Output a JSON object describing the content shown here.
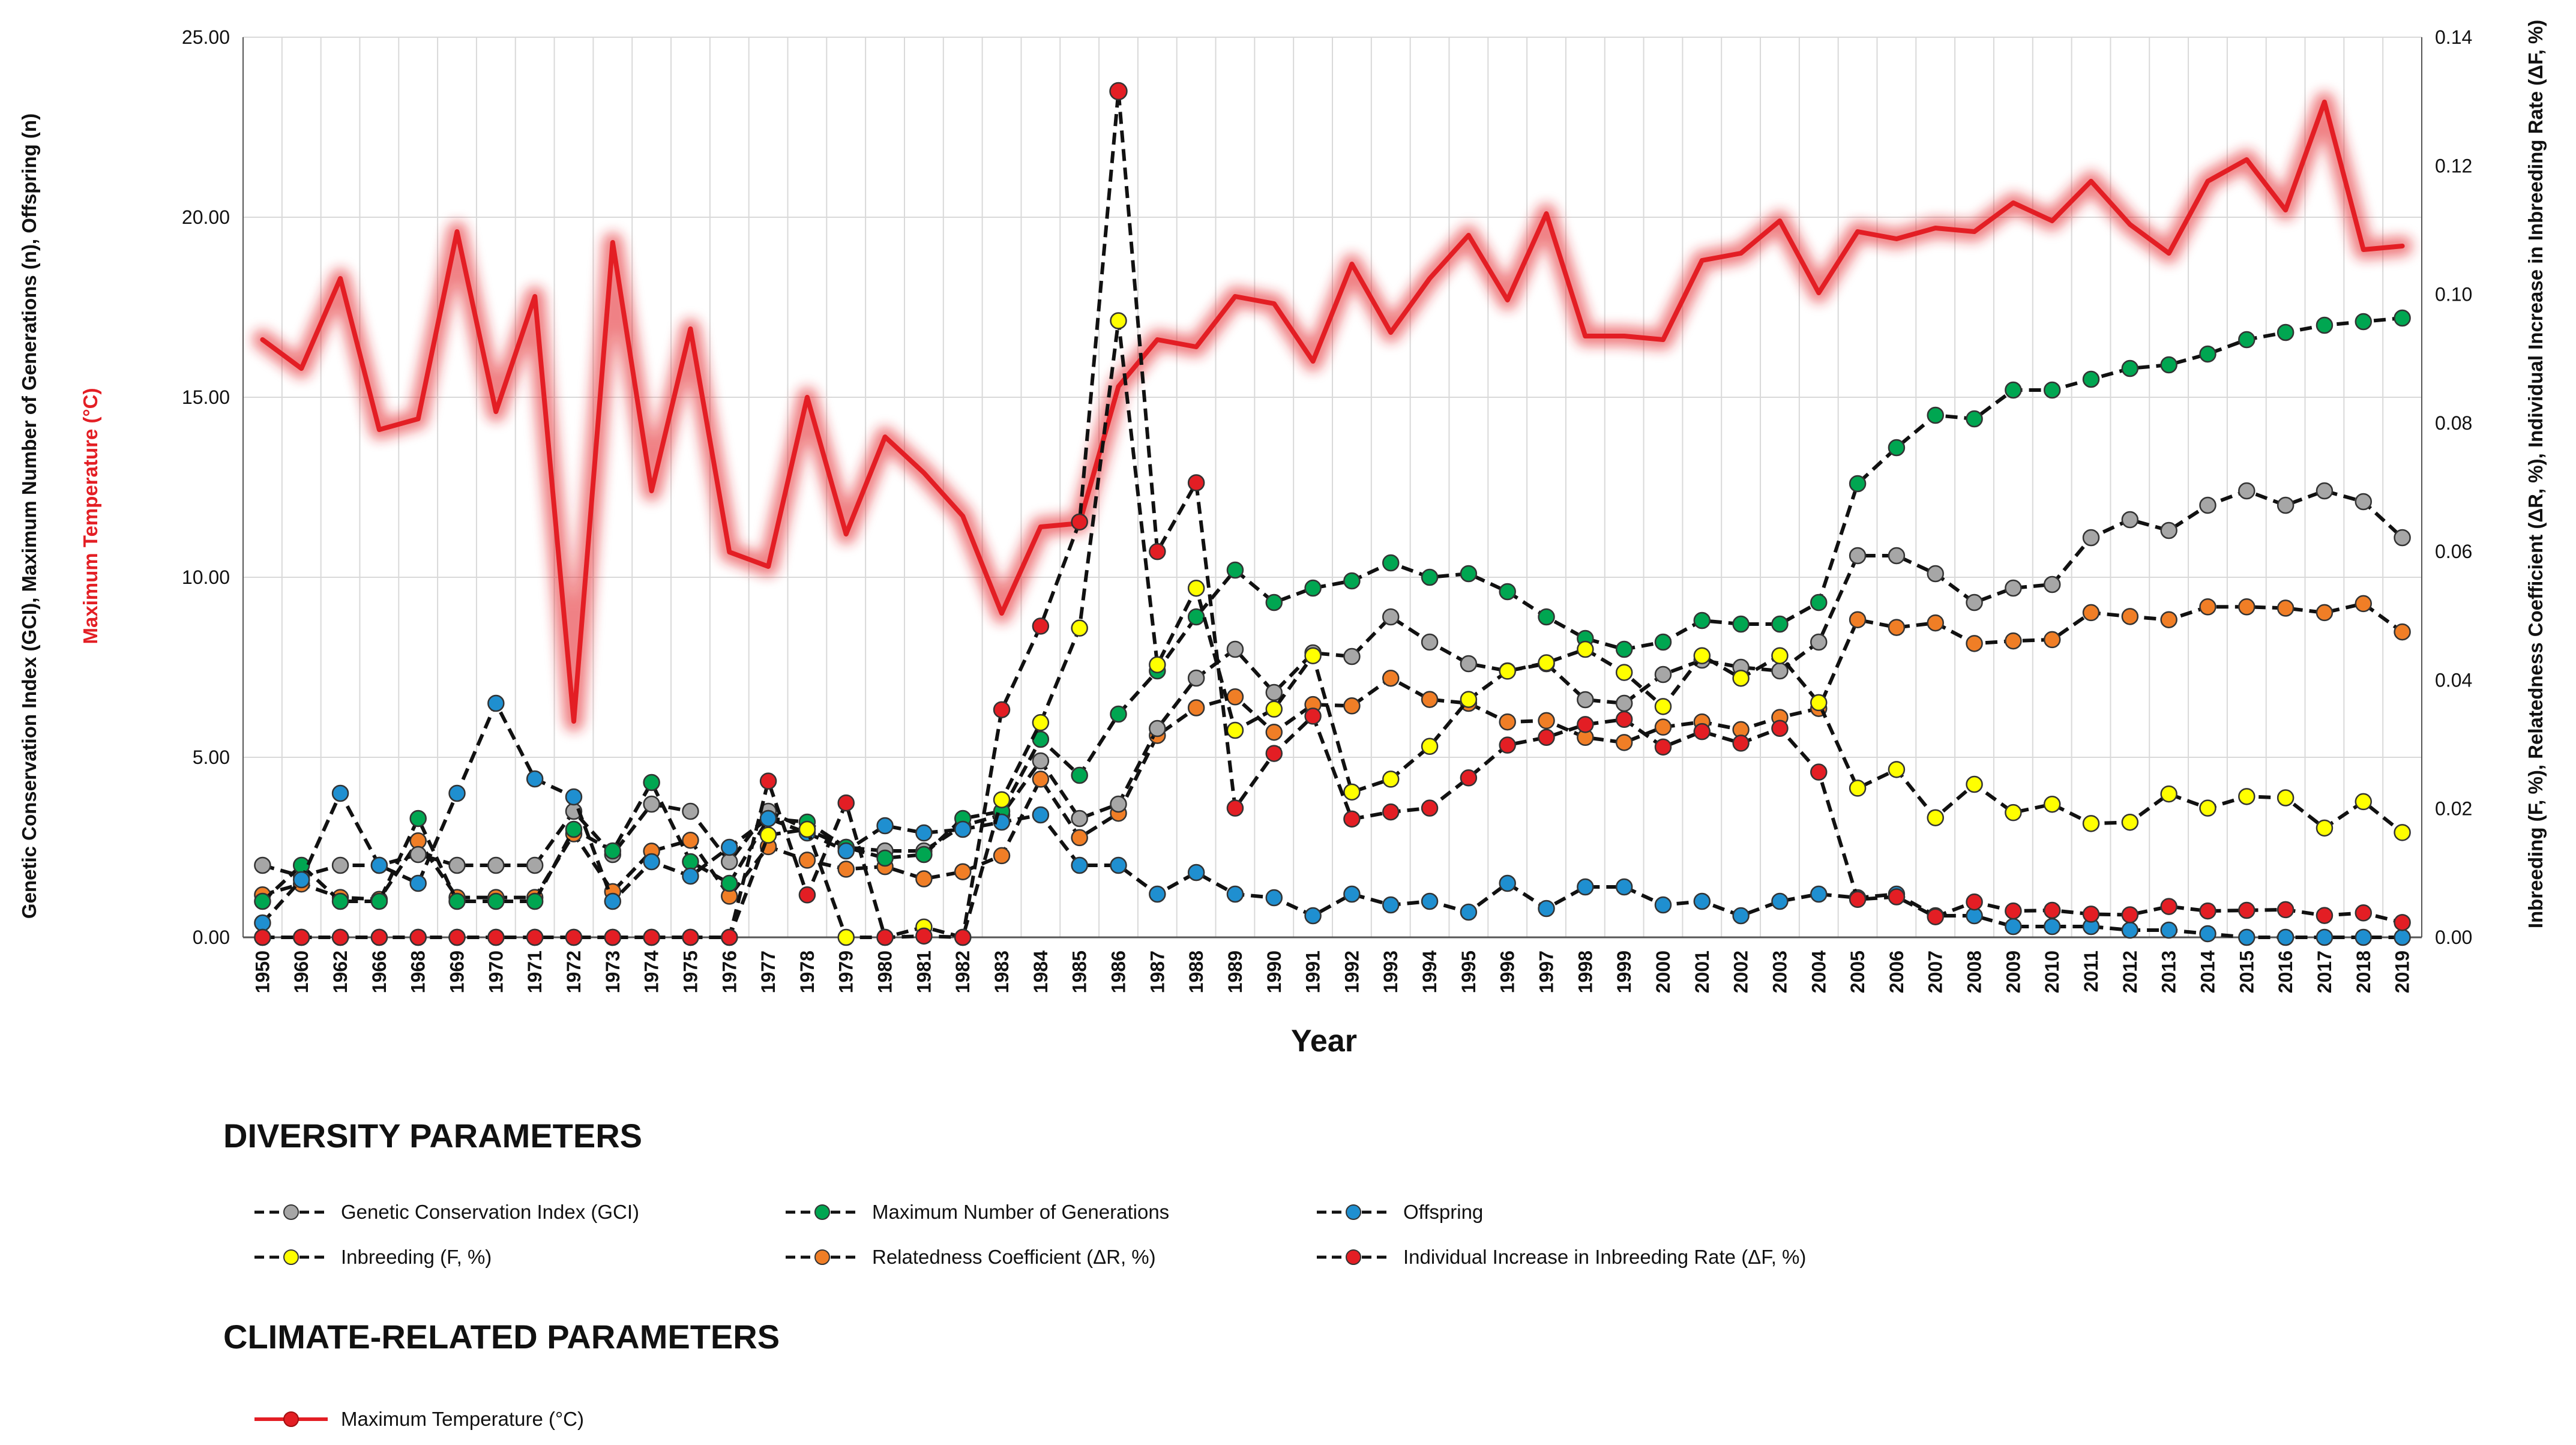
{
  "chart_data": {
    "type": "line",
    "xlabel": "Year",
    "ylabel_left": "Genetic Conservation Index (GCI), Maximum Number of Generations (n), Offspring (n)",
    "ylabel_left_highlight": "Maximum Temperature (°C)",
    "ylabel_right": "Inbreeding (F, %), Relatedness Coefficient (ΔR, %), Individual Increase in Inbreeding Rate (ΔF, %)",
    "ylim_left": [
      0,
      25
    ],
    "ylim_right": [
      0,
      0.14
    ],
    "yticks_left": [
      "0.00",
      "5.00",
      "10.00",
      "15.00",
      "20.00",
      "25.00"
    ],
    "yticks_right": [
      "0.00",
      "0.02",
      "0.04",
      "0.06",
      "0.08",
      "0.10",
      "0.12",
      "0.14"
    ],
    "grid": true,
    "categories": [
      "1950",
      "1960",
      "1962",
      "1966",
      "1968",
      "1969",
      "1970",
      "1971",
      "1972",
      "1973",
      "1974",
      "1975",
      "1976",
      "1977",
      "1978",
      "1979",
      "1980",
      "1981",
      "1982",
      "1983",
      "1984",
      "1985",
      "1986",
      "1987",
      "1988",
      "1989",
      "1990",
      "1991",
      "1992",
      "1993",
      "1994",
      "1995",
      "1996",
      "1997",
      "1998",
      "1999",
      "2000",
      "2001",
      "2002",
      "2003",
      "2004",
      "2005",
      "2006",
      "2007",
      "2008",
      "2009",
      "2010",
      "2011",
      "2012",
      "2013",
      "2014",
      "2015",
      "2016",
      "2017",
      "2018",
      "2019"
    ],
    "legend": {
      "group1_title": "DIVERSITY PARAMETERS",
      "group2_title": "CLIMATE-RELATED PARAMETERS"
    },
    "series": [
      {
        "name": "Genetic Conservation Index (GCI)",
        "axis": "left",
        "color": "#a6a6a6",
        "style": "dashed",
        "values": [
          2.0,
          1.7,
          2.0,
          2.0,
          2.3,
          2.0,
          2.0,
          2.0,
          3.5,
          2.3,
          3.7,
          3.5,
          2.1,
          3.5,
          3.0,
          2.5,
          2.4,
          2.4,
          3.1,
          3.4,
          4.9,
          3.3,
          3.7,
          5.8,
          7.2,
          8.0,
          6.8,
          7.9,
          7.8,
          8.9,
          8.2,
          7.6,
          7.4,
          7.6,
          6.6,
          6.5,
          7.3,
          7.7,
          7.5,
          7.4,
          8.2,
          10.6,
          10.6,
          10.1,
          9.3,
          9.7,
          9.8,
          11.1,
          11.6,
          11.3,
          12.0,
          12.4,
          12.0,
          12.4,
          12.1,
          11.1
        ]
      },
      {
        "name": "Maximum Number of Generations",
        "axis": "left",
        "color": "#00a651",
        "style": "dashed",
        "values": [
          1.0,
          2.0,
          1.0,
          1.0,
          3.3,
          1.0,
          1.0,
          1.0,
          3.0,
          2.4,
          4.3,
          2.1,
          1.5,
          3.3,
          3.2,
          2.5,
          2.2,
          2.3,
          3.3,
          3.5,
          5.5,
          4.5,
          6.2,
          7.4,
          8.9,
          10.2,
          9.3,
          9.7,
          9.9,
          10.4,
          10.0,
          10.1,
          9.6,
          8.9,
          8.3,
          8.0,
          8.2,
          8.8,
          8.7,
          8.7,
          9.3,
          12.6,
          13.6,
          14.5,
          14.4,
          15.2,
          15.2,
          15.5,
          15.8,
          15.9,
          16.2,
          16.6,
          16.8,
          17.0,
          17.1,
          17.2
        ]
      },
      {
        "name": "Offspring",
        "axis": "left",
        "color": "#1f8fd0",
        "style": "dashed",
        "values": [
          0.4,
          1.6,
          4.0,
          2.0,
          1.5,
          4.0,
          6.5,
          4.4,
          3.9,
          1.0,
          2.1,
          1.7,
          2.5,
          3.3,
          2.9,
          2.4,
          3.1,
          2.9,
          3.0,
          3.2,
          3.4,
          2.0,
          2.0,
          1.2,
          1.8,
          1.2,
          1.1,
          0.6,
          1.2,
          0.9,
          1.0,
          0.7,
          1.5,
          0.8,
          1.4,
          1.4,
          0.9,
          1.0,
          0.6,
          1.0,
          1.2,
          1.1,
          1.2,
          0.6,
          0.6,
          0.3,
          0.3,
          0.3,
          0.2,
          0.2,
          0.1,
          0.0,
          0.0,
          0.0,
          0.0,
          0.0
        ]
      },
      {
        "name": "Inbreeding (F, %)",
        "axis": "right",
        "color": "#ffff00",
        "style": "dashed",
        "values": [
          0.0,
          0.0,
          0.0,
          0.0,
          0.0,
          0.0,
          0.0,
          0.0,
          0.0,
          0.0,
          0.0,
          0.0,
          0.0,
          0.0159,
          0.0168,
          0.0,
          0.0,
          0.0016,
          0.0,
          0.0214,
          0.0334,
          0.0481,
          0.0959,
          0.0424,
          0.0543,
          0.0322,
          0.0355,
          0.0438,
          0.0226,
          0.0246,
          0.0297,
          0.037,
          0.0414,
          0.0427,
          0.0448,
          0.0412,
          0.0359,
          0.0438,
          0.0403,
          0.0438,
          0.0365,
          0.0232,
          0.0261,
          0.0186,
          0.0238,
          0.0194,
          0.0207,
          0.0177,
          0.0179,
          0.0223,
          0.0201,
          0.0219,
          0.0217,
          0.017,
          0.0211,
          0.0163
        ]
      },
      {
        "name": "Relatedness Coefficient (ΔR, %)",
        "axis": "right",
        "color": "#f07e26",
        "style": "dashed",
        "values": [
          0.0066,
          0.0083,
          0.0062,
          0.0059,
          0.015,
          0.0062,
          0.0062,
          0.0062,
          0.0161,
          0.0071,
          0.0134,
          0.0151,
          0.0064,
          0.0141,
          0.012,
          0.0106,
          0.011,
          0.0091,
          0.0102,
          0.0127,
          0.0246,
          0.0155,
          0.0193,
          0.0314,
          0.0357,
          0.0374,
          0.0319,
          0.0362,
          0.036,
          0.0403,
          0.037,
          0.0364,
          0.0335,
          0.0337,
          0.0311,
          0.0303,
          0.0327,
          0.0335,
          0.0323,
          0.0342,
          0.0356,
          0.0494,
          0.0482,
          0.0489,
          0.0457,
          0.0461,
          0.0463,
          0.0505,
          0.0499,
          0.0494,
          0.0514,
          0.0514,
          0.0512,
          0.0505,
          0.0519,
          0.0475
        ]
      },
      {
        "name": "Individual Increase in Inbreeding Rate (ΔF, %)",
        "axis": "right",
        "color": "#e31e24",
        "style": "dashed",
        "values": [
          0.0,
          0.0,
          0.0,
          0.0,
          0.0,
          0.0,
          0.0,
          0.0,
          0.0,
          0.0,
          0.0,
          0.0,
          0.0,
          0.0243,
          0.0066,
          0.0209,
          0.0,
          0.0002,
          0.0,
          0.0354,
          0.0484,
          0.0646,
          0.1316,
          0.06,
          0.0707,
          0.0201,
          0.0286,
          0.0344,
          0.0184,
          0.0195,
          0.0201,
          0.0248,
          0.0299,
          0.0311,
          0.0331,
          0.0339,
          0.0296,
          0.032,
          0.0302,
          0.0325,
          0.0257,
          0.0059,
          0.0063,
          0.0032,
          0.0055,
          0.0041,
          0.0042,
          0.0036,
          0.0035,
          0.0048,
          0.0041,
          0.0042,
          0.0043,
          0.0034,
          0.0038,
          0.0023
        ]
      },
      {
        "name": "Maximum Temperature (°C)",
        "axis": "left",
        "color": "#e31e24",
        "style": "solid-glow",
        "values": [
          16.6,
          15.8,
          18.3,
          14.1,
          14.4,
          19.6,
          14.6,
          17.8,
          6.0,
          19.3,
          12.4,
          16.9,
          10.7,
          10.3,
          15.0,
          11.2,
          13.9,
          12.9,
          11.7,
          9.0,
          11.4,
          11.5,
          15.3,
          16.6,
          16.4,
          17.8,
          17.6,
          16.0,
          18.7,
          16.8,
          18.3,
          19.5,
          17.7,
          20.1,
          16.7,
          16.7,
          16.6,
          18.8,
          19.0,
          19.9,
          17.9,
          19.6,
          19.4,
          19.7,
          19.6,
          20.4,
          19.9,
          21.0,
          19.8,
          19.0,
          21.0,
          21.6,
          20.2,
          23.2,
          19.1,
          19.2
        ]
      }
    ]
  }
}
